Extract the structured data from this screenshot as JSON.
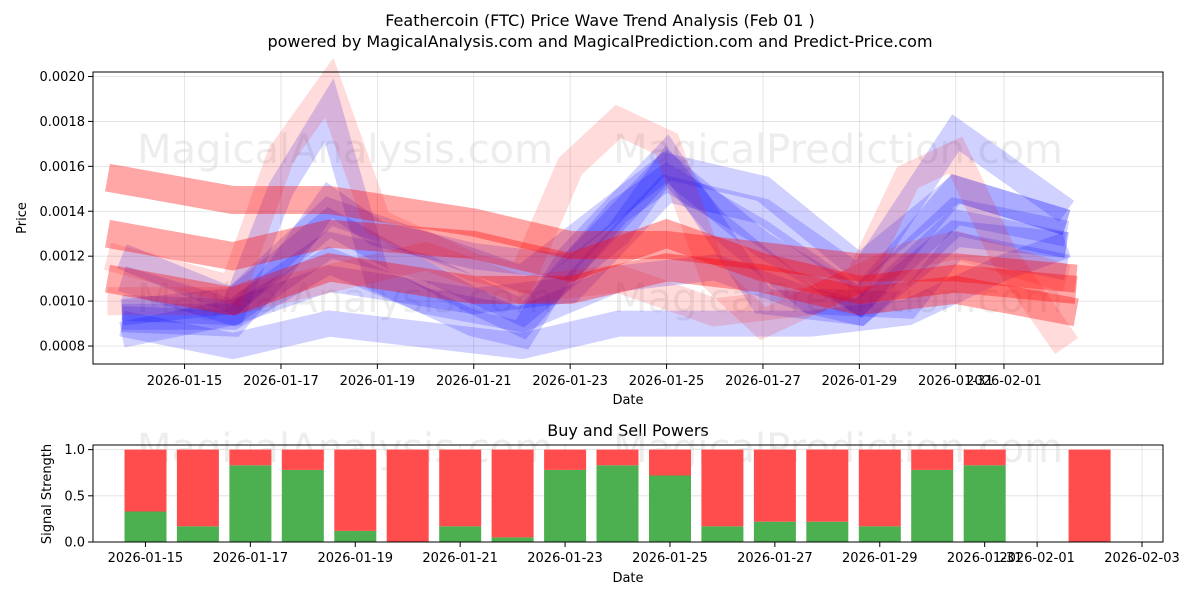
{
  "title": "Feathercoin (FTC) Price Wave Trend Analysis (Feb 01 )",
  "subtitle": "powered by MagicalAnalysis.com and MagicalPrediction.com and Predict-Price.com",
  "watermarks": [
    "MagicalAnalysis.com",
    "MagicalPrediction.com"
  ],
  "colors": {
    "blue": "#0000ff",
    "red": "#ff0000",
    "buy": "#4caf50",
    "sell": "#ff4d4d"
  },
  "chart_data": [
    {
      "type": "line",
      "title": "",
      "xlabel": "Date",
      "ylabel": "Price",
      "xlim": [
        -1.9,
        20.3
      ],
      "ylim": [
        0.00072,
        0.00202
      ],
      "x_ticks": [
        {
          "x": 0,
          "label": "2026-01-15"
        },
        {
          "x": 2,
          "label": "2026-01-17"
        },
        {
          "x": 4,
          "label": "2026-01-19"
        },
        {
          "x": 6,
          "label": "2026-01-21"
        },
        {
          "x": 8,
          "label": "2026-01-23"
        },
        {
          "x": 10,
          "label": "2026-01-25"
        },
        {
          "x": 12,
          "label": "2026-01-27"
        },
        {
          "x": 14,
          "label": "2026-01-29"
        },
        {
          "x": 16,
          "label": "2026-01-31"
        },
        {
          "x": 17,
          "label": "2026-02-01"
        }
      ],
      "y_ticks": [
        "0.0008",
        "0.0010",
        "0.0012",
        "0.0014",
        "0.0016",
        "0.0018",
        "0.0020"
      ],
      "y_tick_values": [
        0.0008,
        0.001,
        0.0012,
        0.0014,
        0.0016,
        0.0018,
        0.002
      ],
      "grid": true,
      "series": [
        {
          "color": "blue",
          "opacity": 0.18,
          "x": [
            -1.3,
            1,
            2,
            3,
            4,
            6,
            8,
            10,
            12,
            14,
            16,
            18.3
          ],
          "values": [
            0.00092,
            0.0009,
            0.00115,
            0.00145,
            0.0013,
            0.0012,
            0.00115,
            0.0016,
            0.0015,
            0.00115,
            0.0015,
            0.00135
          ]
        },
        {
          "color": "blue",
          "opacity": 0.18,
          "x": [
            -1.3,
            1,
            2,
            3,
            4,
            6,
            7,
            8,
            10,
            12,
            14,
            16,
            18.3
          ],
          "values": [
            0.00097,
            0.00095,
            0.0015,
            0.00185,
            0.0011,
            0.0009,
            0.00085,
            0.0012,
            0.00165,
            0.001,
            0.00095,
            0.00135,
            0.00125
          ]
        },
        {
          "color": "blue",
          "opacity": 0.18,
          "x": [
            -1.3,
            1,
            3,
            5,
            7,
            10,
            12,
            14,
            16,
            18.3
          ],
          "values": [
            0.00095,
            0.001,
            0.0014,
            0.00125,
            0.0011,
            0.0016,
            0.00125,
            0.001,
            0.0014,
            0.0013
          ]
        },
        {
          "color": "blue",
          "opacity": 0.18,
          "x": [
            -1.3,
            1,
            3,
            6,
            7,
            9,
            10,
            12,
            14,
            16,
            18.3
          ],
          "values": [
            0.0012,
            0.001,
            0.00135,
            0.001,
            0.0009,
            0.0014,
            0.00155,
            0.0013,
            0.001,
            0.0015,
            0.00135
          ]
        },
        {
          "color": "blue",
          "opacity": 0.18,
          "x": [
            -1.3,
            1,
            3,
            6,
            8,
            10,
            12,
            14,
            16,
            18.3
          ],
          "values": [
            0.00085,
            0.00095,
            0.0011,
            0.001,
            0.00105,
            0.0015,
            0.0014,
            0.0011,
            0.00175,
            0.0014
          ]
        },
        {
          "color": "blue",
          "opacity": 0.18,
          "x": [
            -1.3,
            1,
            3,
            5,
            7,
            9,
            10,
            11,
            13,
            14,
            16,
            18.3
          ],
          "values": [
            0.0011,
            0.00095,
            0.00125,
            0.00115,
            0.00095,
            0.0013,
            0.0016,
            0.00135,
            0.001,
            0.00095,
            0.0013,
            0.00125
          ]
        },
        {
          "color": "blue",
          "opacity": 0.18,
          "x": [
            -1.3,
            1,
            3,
            5,
            7,
            9,
            11,
            13,
            15,
            17,
            18.3
          ],
          "values": [
            0.0009,
            0.0008,
            0.0009,
            0.00085,
            0.0008,
            0.0009,
            0.0009,
            0.0009,
            0.00095,
            0.00115,
            0.00125
          ]
        },
        {
          "color": "blue",
          "opacity": 0.18,
          "x": [
            -1.3,
            1,
            3,
            5,
            7,
            9,
            11,
            13,
            15,
            16,
            18.3
          ],
          "values": [
            0.00093,
            0.00093,
            0.00118,
            0.001,
            0.00092,
            0.0011,
            0.00115,
            0.001,
            0.00098,
            0.00125,
            0.00115
          ]
        },
        {
          "color": "red",
          "opacity": 0.35,
          "x": [
            -1.6,
            1,
            3,
            6,
            8,
            10,
            12,
            14,
            16,
            18.5
          ],
          "values": [
            0.00155,
            0.00145,
            0.00145,
            0.00135,
            0.00125,
            0.00125,
            0.0012,
            0.00115,
            0.00115,
            0.0011
          ]
        },
        {
          "color": "red",
          "opacity": 0.35,
          "x": [
            -1.6,
            1,
            3,
            6,
            8,
            10,
            12,
            14,
            16,
            18.5
          ],
          "values": [
            0.0013,
            0.0012,
            0.0013,
            0.00125,
            0.00115,
            0.0013,
            0.00115,
            0.00105,
            0.0011,
            0.00105
          ]
        },
        {
          "color": "red",
          "opacity": 0.35,
          "x": [
            -1.6,
            1,
            3,
            6,
            8,
            10,
            12,
            14,
            16,
            18.5
          ],
          "values": [
            0.0011,
            0.001,
            0.00115,
            0.00105,
            0.00105,
            0.00115,
            0.0011,
            0.001,
            0.00105,
            0.00095
          ]
        },
        {
          "color": "red",
          "opacity": 0.14,
          "x": [
            -1.6,
            1,
            2,
            3,
            4,
            6,
            7,
            8,
            9,
            10,
            11,
            12,
            14,
            15,
            16,
            17,
            18.3
          ],
          "values": [
            0.0012,
            0.00105,
            0.00165,
            0.00195,
            0.00135,
            0.00115,
            0.0011,
            0.0016,
            0.0018,
            0.0017,
            0.0011,
            0.0009,
            0.0011,
            0.00155,
            0.00165,
            0.0012,
            0.0008
          ]
        },
        {
          "color": "red",
          "opacity": 0.14,
          "x": [
            -1.6,
            1,
            3,
            5,
            7,
            9,
            11,
            13,
            15,
            16,
            18.3
          ],
          "values": [
            0.001,
            0.001,
            0.0011,
            0.0012,
            0.00105,
            0.0011,
            0.00095,
            0.001,
            0.0012,
            0.00125,
            0.0011
          ]
        }
      ]
    },
    {
      "type": "bar",
      "title": "Buy and Sell Powers",
      "xlabel": "Date",
      "ylabel": "Signal Strength",
      "xlim": [
        -1.0,
        19.4
      ],
      "ylim": [
        0,
        1.05
      ],
      "x_ticks": [
        {
          "x": 0,
          "label": "2026-01-15"
        },
        {
          "x": 2,
          "label": "2026-01-17"
        },
        {
          "x": 4,
          "label": "2026-01-19"
        },
        {
          "x": 6,
          "label": "2026-01-21"
        },
        {
          "x": 8,
          "label": "2026-01-23"
        },
        {
          "x": 10,
          "label": "2026-01-25"
        },
        {
          "x": 12,
          "label": "2026-01-27"
        },
        {
          "x": 14,
          "label": "2026-01-29"
        },
        {
          "x": 16,
          "label": "2026-01-31"
        },
        {
          "x": 17,
          "label": "2026-02-01"
        },
        {
          "x": 19,
          "label": "2026-02-03"
        }
      ],
      "y_ticks": [
        "0.0",
        "0.5",
        "1.0"
      ],
      "y_tick_values": [
        0,
        0.5,
        1.0
      ],
      "grid": true,
      "bars": [
        {
          "x": 0,
          "buy": 0.33,
          "sell": 0.67
        },
        {
          "x": 1,
          "buy": 0.17,
          "sell": 0.83
        },
        {
          "x": 2,
          "buy": 0.83,
          "sell": 0.17
        },
        {
          "x": 3,
          "buy": 0.78,
          "sell": 0.22
        },
        {
          "x": 4,
          "buy": 0.12,
          "sell": 0.88
        },
        {
          "x": 5,
          "buy": 0.0,
          "sell": 1.0
        },
        {
          "x": 6,
          "buy": 0.17,
          "sell": 0.83
        },
        {
          "x": 7,
          "buy": 0.05,
          "sell": 0.95
        },
        {
          "x": 8,
          "buy": 0.78,
          "sell": 0.22
        },
        {
          "x": 9,
          "buy": 0.83,
          "sell": 0.17
        },
        {
          "x": 10,
          "buy": 0.72,
          "sell": 0.28
        },
        {
          "x": 11,
          "buy": 0.17,
          "sell": 0.83
        },
        {
          "x": 12,
          "buy": 0.22,
          "sell": 0.78
        },
        {
          "x": 13,
          "buy": 0.22,
          "sell": 0.78
        },
        {
          "x": 14,
          "buy": 0.17,
          "sell": 0.83
        },
        {
          "x": 15,
          "buy": 0.78,
          "sell": 0.22
        },
        {
          "x": 16,
          "buy": 0.83,
          "sell": 0.17
        },
        {
          "x": 18,
          "buy": 0.0,
          "sell": 1.0
        }
      ]
    }
  ]
}
